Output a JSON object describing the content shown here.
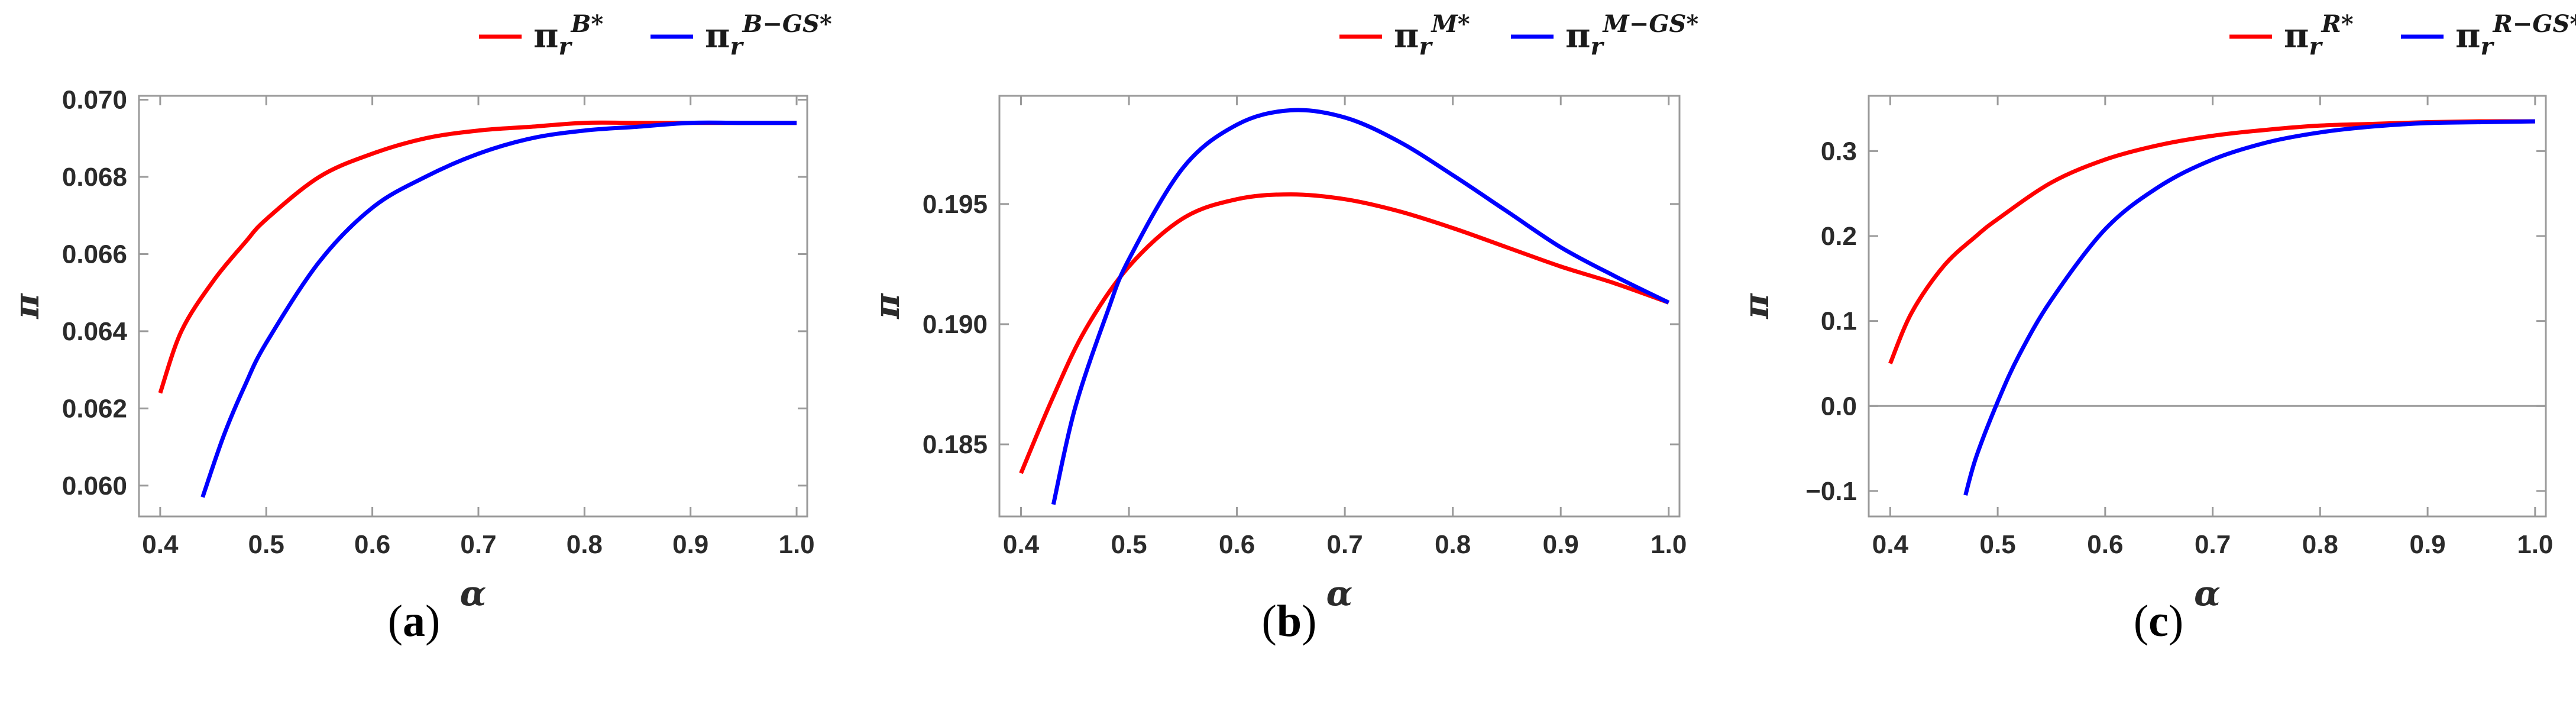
{
  "colors": {
    "series_1": "#ff0000",
    "series_2": "#0000ff",
    "frame": "#9a9a9a",
    "zero_line": "#9a9a9a"
  },
  "chart_data": [
    {
      "type": "line",
      "caption": {
        "open": "(",
        "letter": "a",
        "close": ")"
      },
      "xlabel": "α",
      "ylabel": "π",
      "xlim": [
        0.38,
        1.01
      ],
      "ylim": [
        0.0592,
        0.0701
      ],
      "x_ticks": [
        0.4,
        0.5,
        0.6,
        0.7,
        0.8,
        0.9,
        1.0
      ],
      "x_tick_labels": [
        "0.4",
        "0.5",
        "0.6",
        "0.7",
        "0.8",
        "0.9",
        "1.0"
      ],
      "y_ticks": [
        0.06,
        0.062,
        0.064,
        0.066,
        0.068,
        0.07
      ],
      "y_tick_labels": [
        "0.060",
        "0.062",
        "0.064",
        "0.066",
        "0.068",
        "0.070"
      ],
      "zero_line": false,
      "legend_position": "top-right",
      "series": [
        {
          "name": "π_r^B*",
          "base": "π",
          "sub": "r",
          "sup": "B*",
          "color": "#ff0000",
          "x": [
            0.4,
            0.42,
            0.45,
            0.48,
            0.5,
            0.55,
            0.6,
            0.65,
            0.7,
            0.75,
            0.8,
            0.85,
            0.9,
            0.95,
            1.0
          ],
          "y": [
            0.0624,
            0.064,
            0.0653,
            0.0663,
            0.0669,
            0.068,
            0.0686,
            0.069,
            0.0692,
            0.0693,
            0.0694,
            0.0694,
            0.0694,
            0.0694,
            0.0694
          ]
        },
        {
          "name": "π_r^B-GS*",
          "base": "π",
          "sub": "r",
          "sup": "B−GS*",
          "color": "#0000ff",
          "x": [
            0.44,
            0.46,
            0.48,
            0.5,
            0.55,
            0.6,
            0.65,
            0.7,
            0.75,
            0.8,
            0.85,
            0.9,
            0.95,
            1.0
          ],
          "y": [
            0.0597,
            0.0613,
            0.0626,
            0.0637,
            0.0658,
            0.0672,
            0.068,
            0.0686,
            0.069,
            0.0692,
            0.0693,
            0.0694,
            0.0694,
            0.0694
          ]
        }
      ]
    },
    {
      "type": "line",
      "caption": {
        "open": "(",
        "letter": "b",
        "close": ")"
      },
      "xlabel": "α",
      "ylabel": "π",
      "xlim": [
        0.38,
        1.01
      ],
      "ylim": [
        0.182,
        0.1995
      ],
      "x_ticks": [
        0.4,
        0.5,
        0.6,
        0.7,
        0.8,
        0.9,
        1.0
      ],
      "x_tick_labels": [
        "0.4",
        "0.5",
        "0.6",
        "0.7",
        "0.8",
        "0.9",
        "1.0"
      ],
      "y_ticks": [
        0.185,
        0.19,
        0.195
      ],
      "y_tick_labels": [
        "0.185",
        "0.190",
        "0.195"
      ],
      "zero_line": false,
      "legend_position": "top-right",
      "series": [
        {
          "name": "π_r^M*",
          "base": "π",
          "sub": "r",
          "sup": "M*",
          "color": "#ff0000",
          "x": [
            0.4,
            0.43,
            0.46,
            0.5,
            0.55,
            0.6,
            0.65,
            0.7,
            0.75,
            0.8,
            0.85,
            0.9,
            0.95,
            1.0
          ],
          "y": [
            0.1838,
            0.187,
            0.1898,
            0.1924,
            0.1944,
            0.1952,
            0.1954,
            0.1952,
            0.1947,
            0.194,
            0.1932,
            0.1924,
            0.1917,
            0.1909
          ]
        },
        {
          "name": "π_r^M-GS*",
          "base": "π",
          "sub": "r",
          "sup": "M−GS*",
          "color": "#0000ff",
          "x": [
            0.43,
            0.45,
            0.48,
            0.5,
            0.55,
            0.6,
            0.65,
            0.7,
            0.75,
            0.8,
            0.85,
            0.9,
            0.95,
            1.0
          ],
          "y": [
            0.1825,
            0.1865,
            0.1905,
            0.1927,
            0.1965,
            0.1983,
            0.1989,
            0.1986,
            0.1976,
            0.1962,
            0.1947,
            0.1932,
            0.192,
            0.1909
          ]
        }
      ]
    },
    {
      "type": "line",
      "caption": {
        "open": "(",
        "letter": "c",
        "close": ")"
      },
      "xlabel": "α",
      "ylabel": "π",
      "xlim": [
        0.38,
        1.01
      ],
      "ylim": [
        -0.13,
        0.365
      ],
      "x_ticks": [
        0.4,
        0.5,
        0.6,
        0.7,
        0.8,
        0.9,
        1.0
      ],
      "x_tick_labels": [
        "0.4",
        "0.5",
        "0.6",
        "0.7",
        "0.8",
        "0.9",
        "1.0"
      ],
      "y_ticks": [
        -0.1,
        0.0,
        0.1,
        0.2,
        0.3
      ],
      "y_tick_labels": [
        "−0.1",
        "0.0",
        "0.1",
        "0.2",
        "0.3"
      ],
      "zero_line": true,
      "legend_position": "top-right",
      "series": [
        {
          "name": "π_r^R*",
          "base": "π",
          "sub": "r",
          "sup": "R*",
          "color": "#ff0000",
          "x": [
            0.4,
            0.42,
            0.45,
            0.48,
            0.5,
            0.55,
            0.6,
            0.65,
            0.7,
            0.75,
            0.8,
            0.85,
            0.9,
            0.95,
            1.0
          ],
          "y": [
            0.05,
            0.11,
            0.165,
            0.2,
            0.22,
            0.263,
            0.29,
            0.307,
            0.318,
            0.325,
            0.33,
            0.332,
            0.334,
            0.335,
            0.335
          ]
        },
        {
          "name": "π_r^R-GS*",
          "base": "π",
          "sub": "r",
          "sup": "R−GS*",
          "color": "#0000ff",
          "x": [
            0.47,
            0.48,
            0.5,
            0.52,
            0.55,
            0.6,
            0.65,
            0.7,
            0.75,
            0.8,
            0.85,
            0.9,
            0.95,
            1.0
          ],
          "y": [
            -0.105,
            -0.06,
            0.005,
            0.06,
            0.125,
            0.208,
            0.258,
            0.29,
            0.31,
            0.322,
            0.329,
            0.333,
            0.334,
            0.335
          ]
        }
      ]
    }
  ]
}
